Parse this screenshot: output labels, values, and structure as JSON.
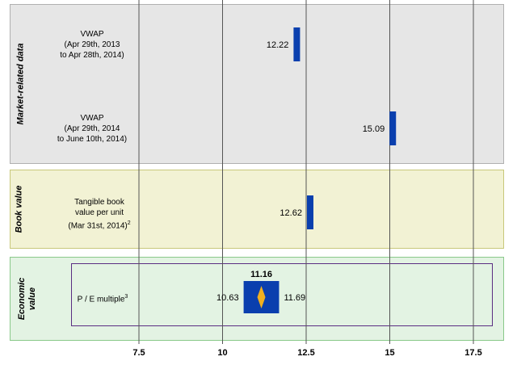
{
  "chart_data": {
    "type": "football_field",
    "x_ticks": [
      7.5,
      10,
      12.5,
      15,
      17.5
    ],
    "x_tick_labels": [
      "7.5",
      "10",
      "12.5",
      "15",
      "17.5"
    ],
    "grid": true,
    "sections": [
      {
        "name": "Market-related data",
        "rows": [
          {
            "label_lines": [
              "VWAP",
              "(Apr 29th, 2013",
              "to Apr 28th, 2014)"
            ],
            "value": 12.22,
            "value_label": "12.22"
          },
          {
            "label_lines": [
              "VWAP",
              "(Apr 29th, 2014",
              "to June 10th, 2014)"
            ],
            "value": 15.09,
            "value_label": "15.09"
          }
        ]
      },
      {
        "name": "Book value",
        "rows": [
          {
            "label_lines": [
              "Tangible book",
              "value per unit",
              "(Mar 31st, 2014)"
            ],
            "label_superscript": "2",
            "value": 12.62,
            "value_label": "12.62"
          }
        ]
      },
      {
        "name_lines": [
          "Economic",
          "value"
        ],
        "rows": [
          {
            "label_lines": [
              "P / E multiple"
            ],
            "label_superscript": "3",
            "low": 10.63,
            "high": 11.69,
            "mid": 11.16,
            "low_label": "10.63",
            "high_label": "11.69",
            "mid_label": "11.16"
          }
        ]
      }
    ],
    "colors": {
      "bar": "#0a3fae",
      "diamond": "#f0b020"
    }
  }
}
